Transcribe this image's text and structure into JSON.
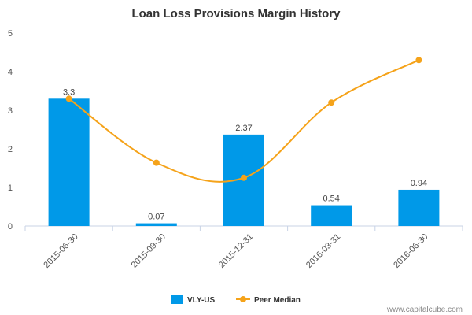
{
  "chart_data": {
    "type": "bar",
    "title": "Loan Loss Provisions Margin History",
    "categories": [
      "2015-06-30",
      "2015-09-30",
      "2015-12-31",
      "2016-03-31",
      "2016-06-30"
    ],
    "series": [
      {
        "name": "VLY-US",
        "type": "bar",
        "values": [
          3.3,
          0.07,
          2.37,
          0.54,
          0.94
        ],
        "labels": [
          "3.3",
          "0.07",
          "2.37",
          "0.54",
          "0.94"
        ],
        "color": "#0099e8"
      },
      {
        "name": "Peer Median",
        "type": "line",
        "values": [
          3.3,
          1.64,
          1.25,
          3.2,
          4.3
        ],
        "color": "#f5a31a"
      }
    ],
    "ylim": [
      0,
      5
    ],
    "yticks": [
      "0",
      "1",
      "2",
      "3",
      "4",
      "5"
    ],
    "xlabel": "",
    "ylabel": "",
    "grid": false,
    "legend_position": "bottom"
  },
  "footer": {
    "watermark": "www.capitalcube.com"
  }
}
